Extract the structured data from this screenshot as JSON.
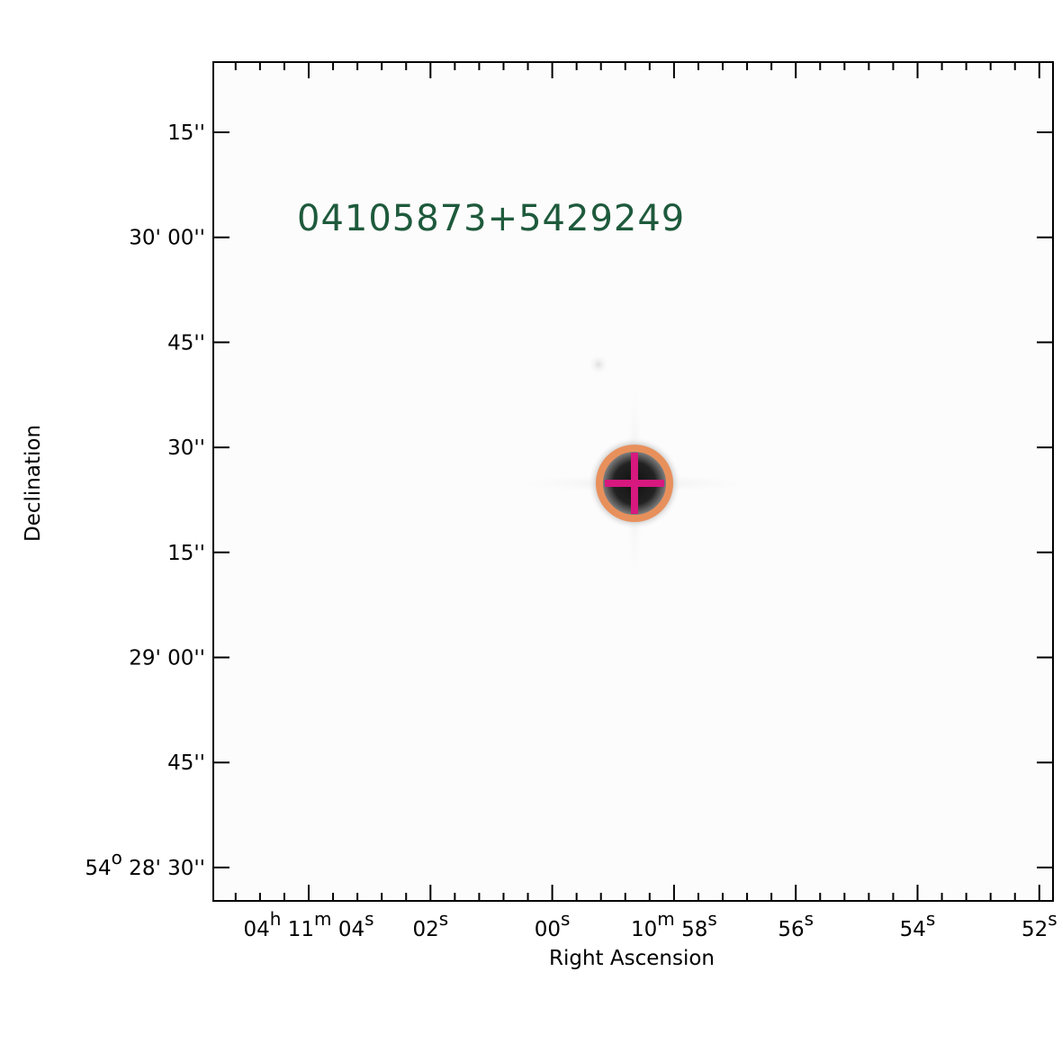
{
  "title": "04105873+5429249",
  "x_axis": {
    "label": "Right Ascension",
    "ticks": [
      [
        "04",
        "h",
        " 11",
        "m",
        " 04",
        "s"
      ],
      [
        "02",
        "s"
      ],
      [
        "00",
        "s"
      ],
      [
        "10",
        "m",
        " 58",
        "s"
      ],
      [
        "56",
        "s"
      ],
      [
        "54",
        "s"
      ],
      [
        "52",
        "s"
      ]
    ]
  },
  "y_axis": {
    "label": "Declination",
    "ticks": [
      [
        "15''"
      ],
      [
        "30' 00''"
      ],
      [
        "45''"
      ],
      [
        "30''"
      ],
      [
        "15''"
      ],
      [
        "29' 00''"
      ],
      [
        "45''"
      ],
      [
        "54",
        "o",
        " 28' 30''"
      ]
    ]
  }
}
